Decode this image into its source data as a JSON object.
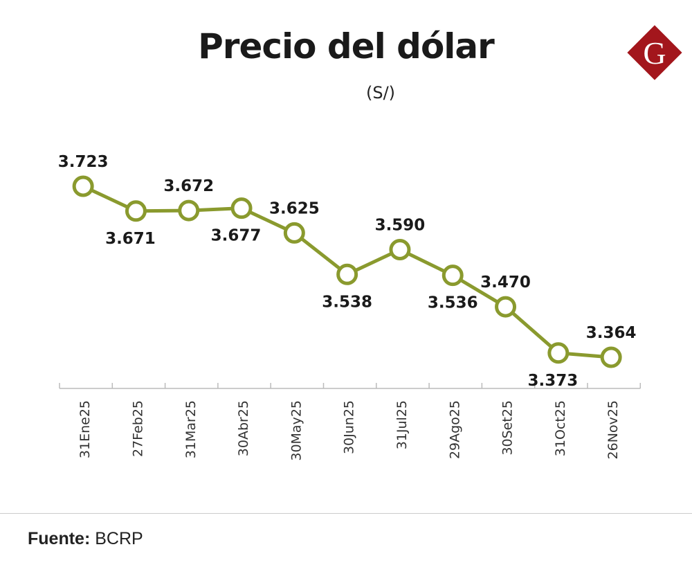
{
  "chart_data": {
    "type": "line",
    "title": "Precio del dólar",
    "subtitle": "(S/)",
    "categories": [
      "31Ene25",
      "27Feb25",
      "31Mar25",
      "30Abr25",
      "30May25",
      "30Jun25",
      "31Jul25",
      "29Ago25",
      "30Set25",
      "31Oct25",
      "26Nov25"
    ],
    "values": [
      3.723,
      3.671,
      3.672,
      3.677,
      3.625,
      3.538,
      3.59,
      3.536,
      3.47,
      3.373,
      3.364
    ],
    "data_labels": [
      "3.723",
      "3.671",
      "3.672",
      "3.677",
      "3.625",
      "3.538",
      "3.590",
      "3.536",
      "3.470",
      "3.373",
      "3.364"
    ],
    "grid": false,
    "line_color": "#8a9a2e"
  },
  "source": {
    "label": "Fuente:",
    "value": "BCRP"
  },
  "logo": {
    "text": "G",
    "color": "#a3161c"
  }
}
